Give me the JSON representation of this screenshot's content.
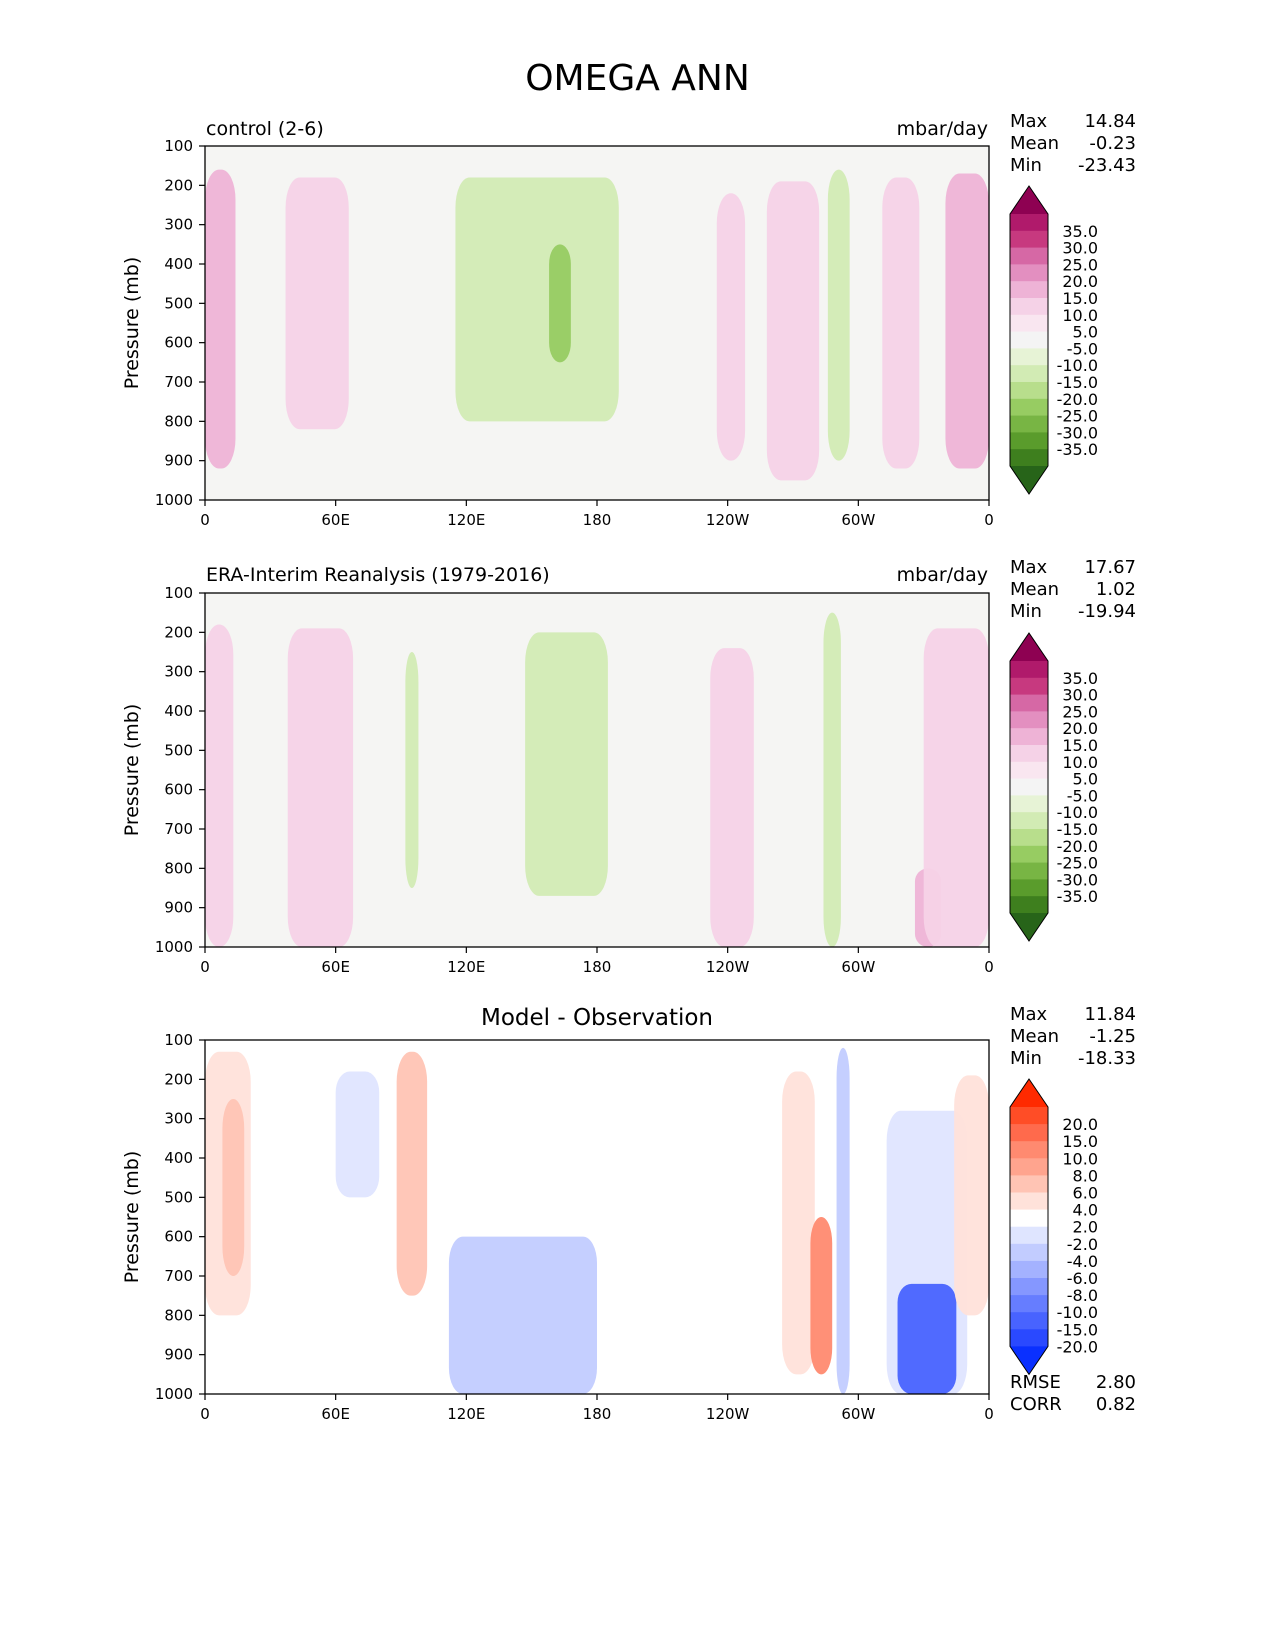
{
  "title": "OMEGA ANN",
  "x_ticks": [
    "0",
    "60E",
    "120E",
    "180",
    "120W",
    "60W",
    "0"
  ],
  "y_ticks": [
    "100",
    "200",
    "300",
    "400",
    "500",
    "600",
    "700",
    "800",
    "900",
    "1000"
  ],
  "ylabel": "Pressure (mb)",
  "panels": [
    {
      "id": "control",
      "left_title": "control (2-6)",
      "units": "mbar/day",
      "center_title": "",
      "stats": [
        {
          "label": "Max",
          "value": "14.84"
        },
        {
          "label": "Mean",
          "value": "-0.23"
        },
        {
          "label": "Min",
          "value": "-23.43"
        }
      ],
      "colorbar_labels": [
        "35.0",
        "30.0",
        "25.0",
        "20.0",
        "15.0",
        "10.0",
        "5.0",
        "-5.0",
        "-10.0",
        "-15.0",
        "-20.0",
        "-25.0",
        "-30.0",
        "-35.0"
      ],
      "colorbar_colors": [
        "#8e0152",
        "#b01a6b",
        "#c7397f",
        "#d668a5",
        "#e38fc0",
        "#eeb3d6",
        "#f5d2e7",
        "#f9e6f0",
        "#f4f4f4",
        "#e7f3d6",
        "#d2ebb4",
        "#b8de8c",
        "#97cc62",
        "#78b544",
        "#5a9c2c",
        "#3e7f1e",
        "#276419"
      ],
      "field_colors": {
        "bg": "#f5f5f3",
        "pos1": "#f9e6f0",
        "pos2": "#f5d2e7",
        "pos3": "#eeb3d6",
        "neg1": "#e9f4dc",
        "neg2": "#d2ebb4",
        "neg3": "#97cc62"
      },
      "bottom_stats": []
    },
    {
      "id": "obs",
      "left_title": "ERA-Interim Reanalysis (1979-2016)",
      "units": "mbar/day",
      "center_title": "",
      "stats": [
        {
          "label": "Max",
          "value": "17.67"
        },
        {
          "label": "Mean",
          "value": "1.02"
        },
        {
          "label": "Min",
          "value": "-19.94"
        }
      ],
      "colorbar_labels": [
        "35.0",
        "30.0",
        "25.0",
        "20.0",
        "15.0",
        "10.0",
        "5.0",
        "-5.0",
        "-10.0",
        "-15.0",
        "-20.0",
        "-25.0",
        "-30.0",
        "-35.0"
      ],
      "colorbar_colors": [
        "#8e0152",
        "#b01a6b",
        "#c7397f",
        "#d668a5",
        "#e38fc0",
        "#eeb3d6",
        "#f5d2e7",
        "#f9e6f0",
        "#f4f4f4",
        "#e7f3d6",
        "#d2ebb4",
        "#b8de8c",
        "#97cc62",
        "#78b544",
        "#5a9c2c",
        "#3e7f1e",
        "#276419"
      ],
      "field_colors": {
        "bg": "#f5f5f3",
        "pos1": "#f9e6f0",
        "pos2": "#f5d2e7",
        "pos3": "#eeb3d6",
        "neg1": "#e9f4dc",
        "neg2": "#d2ebb4",
        "neg3": "#97cc62"
      },
      "bottom_stats": []
    },
    {
      "id": "diff",
      "left_title": "",
      "units": "",
      "center_title": "Model - Observation",
      "stats": [
        {
          "label": "Max",
          "value": "11.84"
        },
        {
          "label": "Mean",
          "value": "-1.25"
        },
        {
          "label": "Min",
          "value": "-18.33"
        }
      ],
      "colorbar_labels": [
        "20.0",
        "15.0",
        "10.0",
        "8.0",
        "6.0",
        "4.0",
        "2.0",
        "-2.0",
        "-4.0",
        "-6.0",
        "-8.0",
        "-10.0",
        "-15.0",
        "-20.0"
      ],
      "colorbar_colors": [
        "#ff2a00",
        "#ff4d26",
        "#ff6a4c",
        "#ff8a70",
        "#ffa48e",
        "#ffc4b4",
        "#ffe2da",
        "#ffffff",
        "#dfe5ff",
        "#c2ccff",
        "#a4b2ff",
        "#8597ff",
        "#667dff",
        "#4863ff",
        "#2a49ff",
        "#0a30ff"
      ],
      "field_colors": {
        "bg": "#ffffff",
        "pos1": "#ffe2da",
        "pos2": "#ffc4b4",
        "pos3": "#ff8a70",
        "neg1": "#dfe5ff",
        "neg2": "#c2ccff",
        "neg3": "#8597ff",
        "neg4": "#4863ff"
      },
      "bottom_stats": [
        {
          "label": "RMSE",
          "value": "2.80"
        },
        {
          "label": "CORR",
          "value": "0.82"
        }
      ]
    }
  ],
  "chart_data": [
    {
      "type": "heatmap",
      "title": "control (2-6)",
      "units": "mbar/day",
      "xlabel": "",
      "ylabel": "Pressure (mb)",
      "x_categories": [
        "0",
        "60E",
        "120E",
        "180",
        "120W",
        "60W",
        "0"
      ],
      "xlim": [
        0,
        360
      ],
      "ylim": [
        1000,
        100
      ],
      "levels": [
        -35,
        -30,
        -25,
        -20,
        -15,
        -10,
        -5,
        5,
        10,
        15,
        20,
        25,
        30,
        35
      ],
      "max": 14.84,
      "mean": -0.23,
      "min": -23.43,
      "features": [
        {
          "lon": [
            0,
            14
          ],
          "p": [
            160,
            920
          ],
          "value": 8
        },
        {
          "lon": [
            37,
            66
          ],
          "p": [
            180,
            820
          ],
          "value": 6
        },
        {
          "lon": [
            115,
            190
          ],
          "p": [
            180,
            800
          ],
          "value": -6
        },
        {
          "lon": [
            158,
            168
          ],
          "p": [
            350,
            650
          ],
          "value": -11
        },
        {
          "lon": [
            235,
            248
          ],
          "p": [
            220,
            900
          ],
          "value": 6
        },
        {
          "lon": [
            258,
            282
          ],
          "p": [
            190,
            950
          ],
          "value": 6
        },
        {
          "lon": [
            286,
            296
          ],
          "p": [
            160,
            900
          ],
          "value": -7
        },
        {
          "lon": [
            311,
            328
          ],
          "p": [
            180,
            920
          ],
          "value": 6
        },
        {
          "lon": [
            340,
            360
          ],
          "p": [
            170,
            920
          ],
          "value": 9
        }
      ]
    },
    {
      "type": "heatmap",
      "title": "ERA-Interim Reanalysis (1979-2016)",
      "units": "mbar/day",
      "xlabel": "",
      "ylabel": "Pressure (mb)",
      "x_categories": [
        "0",
        "60E",
        "120E",
        "180",
        "120W",
        "60W",
        "0"
      ],
      "xlim": [
        0,
        360
      ],
      "ylim": [
        1000,
        100
      ],
      "levels": [
        -35,
        -30,
        -25,
        -20,
        -15,
        -10,
        -5,
        5,
        10,
        15,
        20,
        25,
        30,
        35
      ],
      "max": 17.67,
      "mean": 1.02,
      "min": -19.94,
      "features": [
        {
          "lon": [
            0,
            13
          ],
          "p": [
            180,
            1000
          ],
          "value": 6
        },
        {
          "lon": [
            38,
            68
          ],
          "p": [
            190,
            1000
          ],
          "value": 7
        },
        {
          "lon": [
            92,
            98
          ],
          "p": [
            250,
            850
          ],
          "value": -6
        },
        {
          "lon": [
            147,
            185
          ],
          "p": [
            200,
            870
          ],
          "value": -6
        },
        {
          "lon": [
            232,
            252
          ],
          "p": [
            240,
            1000
          ],
          "value": 6
        },
        {
          "lon": [
            284,
            292
          ],
          "p": [
            150,
            1000
          ],
          "value": -8
        },
        {
          "lon": [
            326,
            338
          ],
          "p": [
            800,
            1000
          ],
          "value": 9
        },
        {
          "lon": [
            330,
            360
          ],
          "p": [
            190,
            1000
          ],
          "value": 6
        }
      ]
    },
    {
      "type": "heatmap",
      "title": "Model - Observation",
      "units": "mbar/day",
      "xlabel": "",
      "ylabel": "Pressure (mb)",
      "x_categories": [
        "0",
        "60E",
        "120E",
        "180",
        "120W",
        "60W",
        "0"
      ],
      "xlim": [
        0,
        360
      ],
      "ylim": [
        1000,
        100
      ],
      "levels": [
        -20,
        -15,
        -10,
        -8,
        -6,
        -4,
        -2,
        2,
        4,
        6,
        8,
        10,
        15,
        20
      ],
      "max": 11.84,
      "mean": -1.25,
      "min": -18.33,
      "rmse": 2.8,
      "corr": 0.82,
      "features": [
        {
          "lon": [
            0,
            21
          ],
          "p": [
            130,
            800
          ],
          "value": 5
        },
        {
          "lon": [
            8,
            18
          ],
          "p": [
            250,
            700
          ],
          "value": 7
        },
        {
          "lon": [
            60,
            80
          ],
          "p": [
            180,
            500
          ],
          "value": -3
        },
        {
          "lon": [
            88,
            102
          ],
          "p": [
            130,
            750
          ],
          "value": 6
        },
        {
          "lon": [
            112,
            180
          ],
          "p": [
            600,
            1000
          ],
          "value": -6
        },
        {
          "lon": [
            265,
            280
          ],
          "p": [
            180,
            950
          ],
          "value": 4
        },
        {
          "lon": [
            278,
            288
          ],
          "p": [
            550,
            950
          ],
          "value": 8
        },
        {
          "lon": [
            290,
            296
          ],
          "p": [
            120,
            1000
          ],
          "value": -8
        },
        {
          "lon": [
            313,
            350
          ],
          "p": [
            280,
            1000
          ],
          "value": -4
        },
        {
          "lon": [
            318,
            345
          ],
          "p": [
            720,
            1000
          ],
          "value": -10
        },
        {
          "lon": [
            344,
            360
          ],
          "p": [
            190,
            800
          ],
          "value": 4
        }
      ]
    }
  ]
}
